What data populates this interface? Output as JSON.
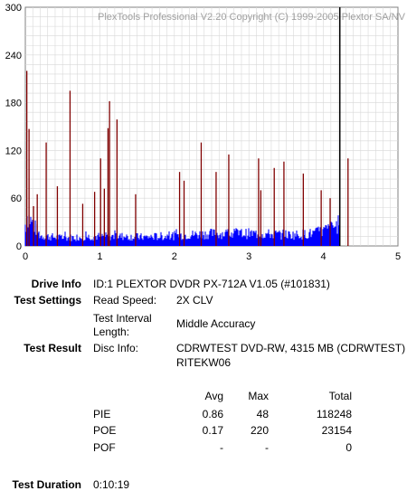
{
  "chart_data": {
    "type": "bar",
    "watermark": "PlexTools Professional V2.20 Copyright (C) 1999-2005 Plextor SA/NV",
    "xlim": [
      0,
      5
    ],
    "ylim": [
      0,
      300
    ],
    "x_ticks": [
      0,
      1,
      2,
      3,
      4,
      5
    ],
    "y_ticks": [
      0,
      60,
      120,
      180,
      240,
      300
    ],
    "grid": true,
    "end_marker_x": 4.22,
    "series": [
      {
        "color": "#0000ff",
        "base_level": 10,
        "x_end": 4.22,
        "points": [
          [
            0.02,
            40
          ],
          [
            0.2,
            13
          ],
          [
            0.5,
            10
          ],
          [
            0.9,
            12
          ],
          [
            1.3,
            12
          ],
          [
            1.6,
            11
          ],
          [
            2.0,
            13
          ],
          [
            2.4,
            15
          ],
          [
            2.8,
            16
          ],
          [
            3.2,
            15
          ],
          [
            3.6,
            14
          ],
          [
            3.9,
            16
          ],
          [
            4.1,
            22
          ],
          [
            4.2,
            27
          ]
        ]
      },
      {
        "color": "#800000",
        "spikes": [
          [
            0.02,
            220
          ],
          [
            0.05,
            147
          ],
          [
            0.11,
            50
          ],
          [
            0.16,
            65
          ],
          [
            0.28,
            130
          ],
          [
            0.43,
            75
          ],
          [
            0.6,
            195
          ],
          [
            0.77,
            53
          ],
          [
            0.93,
            68
          ],
          [
            1.01,
            110
          ],
          [
            1.06,
            72
          ],
          [
            1.11,
            148
          ],
          [
            1.13,
            182
          ],
          [
            1.23,
            159
          ],
          [
            1.48,
            65
          ],
          [
            2.07,
            93
          ],
          [
            2.13,
            82
          ],
          [
            2.36,
            130
          ],
          [
            2.56,
            93
          ],
          [
            2.73,
            115
          ],
          [
            3.13,
            110
          ],
          [
            3.16,
            70
          ],
          [
            3.34,
            98
          ],
          [
            3.47,
            106
          ],
          [
            3.73,
            91
          ],
          [
            3.97,
            70
          ],
          [
            4.09,
            60
          ],
          [
            4.33,
            110
          ]
        ]
      }
    ]
  },
  "info": {
    "drive_info": {
      "label": "Drive Info",
      "value": "ID:1 PLEXTOR DVDR PX-712A V1.05 (#101831)"
    },
    "test_settings": {
      "label": "Test Settings",
      "read_speed_label": "Read Speed:",
      "read_speed_value": "2X CLV",
      "interval_label_line1": "Test Interval",
      "interval_label_line2": "Length:",
      "interval_value": "Middle Accuracy"
    },
    "test_result": {
      "label": "Test Result",
      "disc_info_label": "Disc Info:",
      "disc_info_line1": "CDRWTEST DVD-RW, 4315 MB (CDRWTEST)",
      "disc_info_line2": "RITEKW06"
    },
    "stats": {
      "headers": {
        "avg": "Avg",
        "max": "Max",
        "total": "Total"
      },
      "rows": [
        {
          "name": "PIE",
          "avg": "0.86",
          "max": "48",
          "total": "118248"
        },
        {
          "name": "POE",
          "avg": "0.17",
          "max": "220",
          "total": "23154"
        },
        {
          "name": "POF",
          "avg": "-",
          "max": "-",
          "total": "0"
        }
      ]
    },
    "duration": {
      "label": "Test Duration",
      "value": "0:10:19"
    }
  }
}
